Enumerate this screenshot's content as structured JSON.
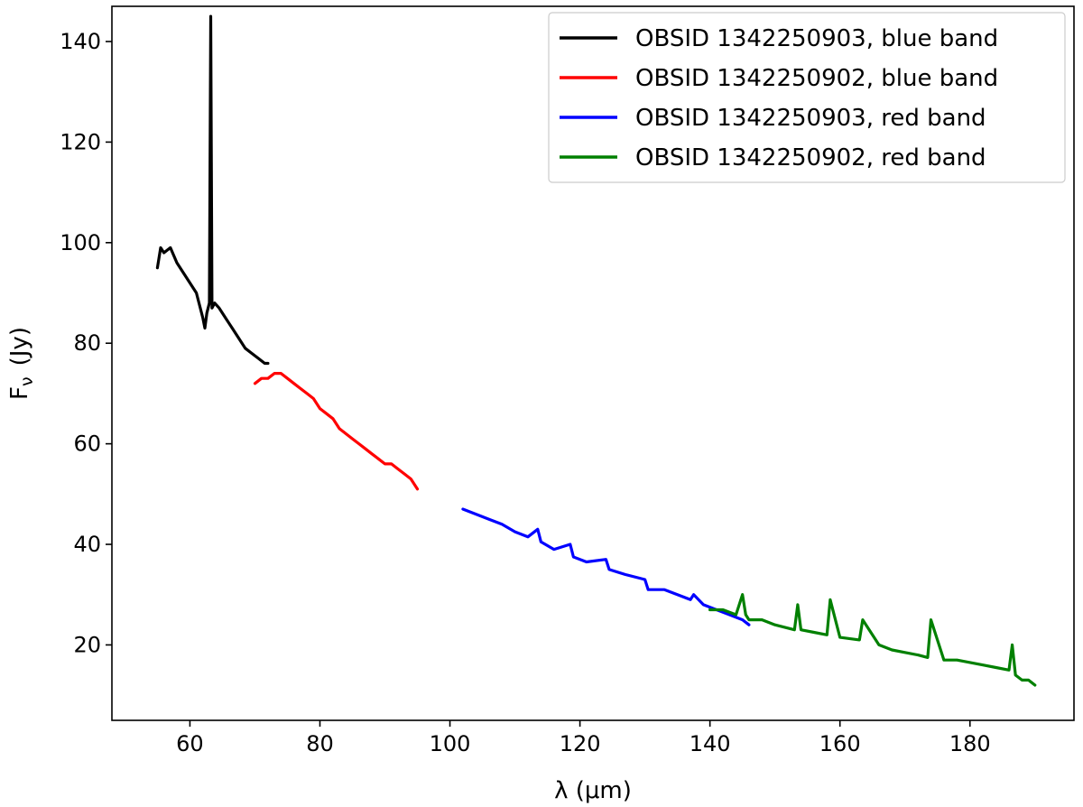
{
  "chart_data": {
    "type": "line",
    "xlabel": "λ (μm)",
    "ylabel_main": "F",
    "ylabel_sub": "ν",
    "ylabel_unit": "(Jy)",
    "xlim": [
      48,
      196
    ],
    "ylim": [
      5,
      147
    ],
    "xticks": [
      60,
      80,
      100,
      120,
      140,
      160,
      180
    ],
    "yticks": [
      20,
      40,
      60,
      80,
      100,
      120,
      140
    ],
    "grid": false,
    "legend_position": "top-right",
    "series": [
      {
        "name": "OBSID 1342250903, blue band",
        "color": "#000000",
        "x": [
          55.0,
          55.5,
          56.0,
          57.0,
          58.0,
          59.0,
          60.0,
          61.0,
          62.0,
          62.3,
          62.6,
          63.0,
          63.2,
          63.4,
          63.8,
          64.5,
          65.5,
          66.5,
          67.5,
          68.5,
          69.5,
          70.5,
          71.5,
          72.0
        ],
        "y": [
          95,
          99,
          98,
          99,
          96,
          94,
          92,
          90,
          85,
          83,
          86,
          88,
          145,
          87,
          88,
          87,
          85,
          83,
          81,
          79,
          78,
          77,
          76,
          76
        ]
      },
      {
        "name": "OBSID 1342250902, blue band",
        "color": "#ff0000",
        "x": [
          70.0,
          71.0,
          72.0,
          73.0,
          74.0,
          75.0,
          76.0,
          77.0,
          78.0,
          79.0,
          80.0,
          81.0,
          82.0,
          83.0,
          84.0,
          85.0,
          86.0,
          87.0,
          88.0,
          89.0,
          90.0,
          91.0,
          92.0,
          93.0,
          94.0,
          95.0
        ],
        "y": [
          72,
          73,
          73,
          74,
          74,
          73,
          72,
          71,
          70,
          69,
          67,
          66,
          65,
          63,
          62,
          61,
          60,
          59,
          58,
          57,
          56,
          56,
          55,
          54,
          53,
          51
        ]
      },
      {
        "name": "OBSID 1342250903, red band",
        "color": "#0000ff",
        "x": [
          102.0,
          104.0,
          106.0,
          108.0,
          110.0,
          112.0,
          113.5,
          114.0,
          116.0,
          118.5,
          119.0,
          121.0,
          124.0,
          124.5,
          127.0,
          130.0,
          130.5,
          133.0,
          135.0,
          137.0,
          137.5,
          139.0,
          141.0,
          143.0,
          145.0,
          146.0
        ],
        "y": [
          47,
          46,
          45,
          44,
          42.5,
          41.5,
          43,
          40.5,
          39,
          40,
          37.5,
          36.5,
          37,
          35,
          34,
          33,
          31,
          31,
          30,
          29,
          30,
          28,
          27,
          26,
          25,
          24
        ]
      },
      {
        "name": "OBSID 1342250902, red band",
        "color": "#008000",
        "x": [
          140.0,
          142.0,
          144.0,
          145.0,
          145.5,
          146.0,
          148.0,
          150.0,
          153.0,
          153.5,
          154.0,
          156.0,
          158.0,
          158.5,
          160.0,
          163.0,
          163.5,
          166.0,
          168.0,
          170.0,
          172.0,
          173.5,
          174.0,
          176.0,
          178.0,
          180.0,
          182.0,
          184.0,
          186.0,
          186.5,
          187.0,
          188.0,
          189.0,
          190.0
        ],
        "y": [
          27,
          27,
          26,
          30,
          26,
          25,
          25,
          24,
          23,
          28,
          23,
          22.5,
          22,
          29,
          21.5,
          21,
          25,
          20,
          19,
          18.5,
          18,
          17.5,
          25,
          17,
          17,
          16.5,
          16,
          15.5,
          15,
          20,
          14,
          13,
          13,
          12
        ]
      }
    ]
  }
}
